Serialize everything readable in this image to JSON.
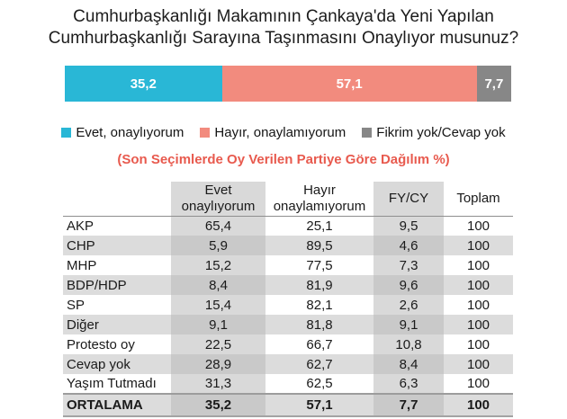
{
  "header": {
    "title_line1": "Cumhurbaşkanlığı Makamının Çankaya'da Yeni Yapılan",
    "title_line2": "Cumhurbaşkanlığı Sarayına Taşınmasını Onaylıyor musunuz?"
  },
  "chart_data": [
    {
      "type": "bar",
      "orientation": "horizontal-stacked",
      "title": "Cumhurbaşkanlığı Makamının Çankaya'da Yeni Yapılan Cumhurbaşkanlığı Sarayına Taşınmasını Onaylıyor musunuz?",
      "xlim": [
        0,
        100
      ],
      "unit": "%",
      "legend_position": "below",
      "series": [
        {
          "key": "evet",
          "name": "Evet, onaylıyorum",
          "value": 35.2,
          "label": "35,2",
          "color": "#29b7d6"
        },
        {
          "key": "hayir",
          "name": "Hayır, onaylamıyorum",
          "value": 57.1,
          "label": "57,1",
          "color": "#f28b7e"
        },
        {
          "key": "fikrim-yok",
          "name": "Fikrim yok/Cevap yok",
          "value": 7.7,
          "label": "7,7",
          "color": "#878787"
        }
      ]
    },
    {
      "type": "table",
      "title": "(Son Seçimlerde Oy Verilen Partiye Göre Dağılım %)",
      "columns": [
        "",
        "Evet onaylıyorum",
        "Hayır onaylamıyorum",
        "FY/CY",
        "Toplam"
      ],
      "shaded_columns": [
        1,
        3
      ],
      "rows": [
        {
          "label": "AKP",
          "values": [
            "65,4",
            "25,1",
            "9,5",
            "100"
          ]
        },
        {
          "label": "CHP",
          "values": [
            "5,9",
            "89,5",
            "4,6",
            "100"
          ]
        },
        {
          "label": "MHP",
          "values": [
            "15,2",
            "77,5",
            "7,3",
            "100"
          ]
        },
        {
          "label": "BDP/HDP",
          "values": [
            "8,4",
            "81,9",
            "9,6",
            "100"
          ]
        },
        {
          "label": "SP",
          "values": [
            "15,4",
            "82,1",
            "2,6",
            "100"
          ]
        },
        {
          "label": "Diğer",
          "values": [
            "9,1",
            "81,8",
            "9,1",
            "100"
          ]
        },
        {
          "label": "Protesto oy",
          "values": [
            "22,5",
            "66,7",
            "10,8",
            "100"
          ]
        },
        {
          "label": "Cevap yok",
          "values": [
            "28,9",
            "62,7",
            "8,4",
            "100"
          ]
        },
        {
          "label": "Yaşım Tutmadı",
          "values": [
            "31,3",
            "62,5",
            "6,3",
            "100"
          ]
        },
        {
          "label": "ORTALAMA",
          "values": [
            "35,2",
            "57,1",
            "7,7",
            "100"
          ],
          "bold": true
        }
      ]
    }
  ]
}
